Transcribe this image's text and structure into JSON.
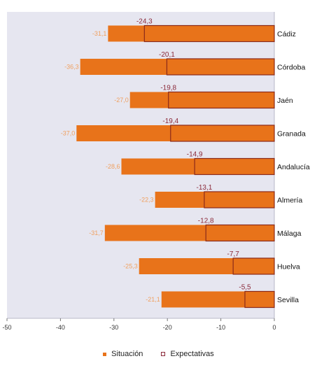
{
  "chart_data": {
    "type": "bar",
    "orientation": "horizontal",
    "categories": [
      "Cádiz",
      "Córdoba",
      "Jaén",
      "Granada",
      "Andalucía",
      "Almería",
      "Málaga",
      "Huelva",
      "Sevilla"
    ],
    "series": [
      {
        "name": "Situación",
        "values": [
          -31.1,
          -36.3,
          -27.0,
          -37.0,
          -28.6,
          -22.3,
          -31.7,
          -25.3,
          -21.1
        ],
        "labels": [
          "-31,1",
          "-36,3",
          "-27,0",
          "-37,0",
          "-28,6",
          "-22,3",
          "-31,7",
          "-25,3",
          "-21,1"
        ]
      },
      {
        "name": "Expectativas",
        "values": [
          -24.3,
          -20.1,
          -19.8,
          -19.4,
          -14.9,
          -13.1,
          -12.8,
          -7.7,
          -5.5
        ],
        "labels": [
          "-24,3",
          "-20,1",
          "-19,8",
          "-19,4",
          "-14,9",
          "-13,1",
          "-12,8",
          "-7,7",
          "-5,5"
        ]
      }
    ],
    "xlim": [
      -50,
      0
    ],
    "xticks": [
      -50,
      -40,
      -30,
      -20,
      -10,
      0
    ],
    "xtick_labels": [
      "-50",
      "-40",
      "-30",
      "-20",
      "-10",
      "0"
    ],
    "title": "",
    "xlabel": "",
    "ylabel": "",
    "grid": false,
    "legend_position": "bottom",
    "colors": {
      "situacion": "#E8731A",
      "expectativas_outline": "#8B2A1A",
      "situacion_label": "#F0A060",
      "expectativas_label": "#8B2A3A",
      "plot_background": "#E6E6F0",
      "frame": "#B8B8C8"
    }
  },
  "legend": {
    "items": [
      {
        "label": "Situación",
        "style": "fill"
      },
      {
        "label": "Expectativas",
        "style": "outline"
      }
    ]
  }
}
